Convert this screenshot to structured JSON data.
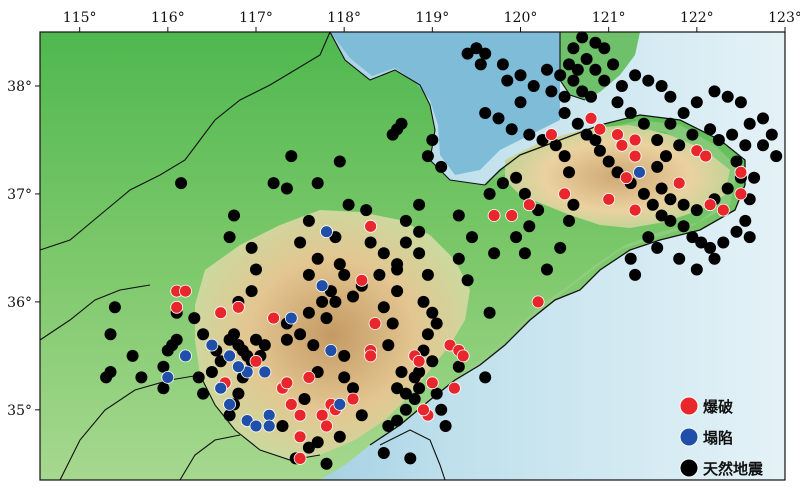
{
  "map": {
    "longitude_ticks": [
      "115°",
      "116°",
      "117°",
      "118°",
      "119°",
      "120°",
      "121°",
      "122°",
      "123°"
    ],
    "latitude_ticks": [
      "38°",
      "37°",
      "36°",
      "35°"
    ],
    "lon_range": [
      114.55,
      123.0
    ],
    "lat_range": [
      34.35,
      38.5
    ],
    "legend": [
      {
        "label": "爆破",
        "color": "#e8262b"
      },
      {
        "label": "塌陷",
        "color": "#1f4fa8"
      },
      {
        "label": "天然地震",
        "color": "#000000"
      }
    ],
    "colors": {
      "sea_deep": "#7fb8d6",
      "sea_shallow": "#d8ecf2",
      "lowland": "#5cbf5a",
      "plain": "#9fd68a",
      "hills": "#e9d3a3",
      "mountain": "#c7a06a",
      "boundary": "#111111"
    }
  },
  "events": {
    "blast": [
      [
        116.1,
        36.1
      ],
      [
        116.2,
        36.1
      ],
      [
        116.1,
        35.95
      ],
      [
        116.6,
        35.9
      ],
      [
        116.8,
        35.95
      ],
      [
        117.2,
        35.85
      ],
      [
        117.4,
        35.05
      ],
      [
        117.3,
        35.2
      ],
      [
        117.5,
        34.95
      ],
      [
        117.5,
        34.75
      ],
      [
        117.5,
        34.55
      ],
      [
        117.75,
        34.95
      ],
      [
        117.8,
        34.85
      ],
      [
        117.85,
        35.05
      ],
      [
        118.3,
        35.55
      ],
      [
        118.3,
        35.5
      ],
      [
        118.35,
        35.8
      ],
      [
        118.2,
        36.2
      ],
      [
        118.3,
        36.7
      ],
      [
        118.1,
        35.1
      ],
      [
        118.8,
        35.5
      ],
      [
        118.85,
        35.45
      ],
      [
        119.2,
        35.6
      ],
      [
        119.3,
        35.55
      ],
      [
        119.35,
        35.5
      ],
      [
        119.0,
        35.25
      ],
      [
        118.95,
        34.95
      ],
      [
        118.9,
        35.0
      ],
      [
        119.25,
        35.2
      ],
      [
        119.7,
        36.8
      ],
      [
        119.9,
        36.8
      ],
      [
        120.1,
        36.9
      ],
      [
        120.35,
        37.55
      ],
      [
        120.5,
        37.0
      ],
      [
        120.2,
        36.0
      ],
      [
        120.8,
        37.7
      ],
      [
        120.9,
        37.6
      ],
      [
        121.1,
        37.55
      ],
      [
        121.3,
        37.5
      ],
      [
        121.3,
        37.35
      ],
      [
        121.15,
        37.45
      ],
      [
        121.2,
        37.15
      ],
      [
        121.3,
        36.85
      ],
      [
        121.0,
        36.95
      ],
      [
        121.8,
        37.1
      ],
      [
        122.0,
        37.4
      ],
      [
        122.1,
        37.35
      ],
      [
        122.15,
        36.9
      ],
      [
        122.3,
        36.85
      ],
      [
        122.5,
        37.0
      ],
      [
        122.5,
        37.2
      ],
      [
        117.9,
        35.0
      ],
      [
        117.35,
        35.25
      ],
      [
        116.65,
        35.25
      ],
      [
        117.0,
        35.45
      ],
      [
        117.6,
        35.3
      ]
    ],
    "collapse": [
      [
        117.8,
        36.65
      ],
      [
        117.75,
        36.15
      ],
      [
        116.5,
        35.6
      ],
      [
        116.7,
        35.5
      ],
      [
        116.9,
        35.35
      ],
      [
        117.1,
        35.35
      ],
      [
        116.8,
        35.4
      ],
      [
        116.6,
        35.2
      ],
      [
        116.7,
        35.05
      ],
      [
        116.9,
        34.9
      ],
      [
        117.15,
        34.95
      ],
      [
        117.15,
        34.85
      ],
      [
        117.0,
        34.85
      ],
      [
        116.2,
        35.5
      ],
      [
        116.0,
        35.3
      ],
      [
        117.4,
        35.85
      ],
      [
        117.85,
        35.55
      ],
      [
        117.95,
        35.05
      ],
      [
        121.35,
        37.2
      ]
    ],
    "natural": [
      [
        115.4,
        35.95
      ],
      [
        115.35,
        35.7
      ],
      [
        115.35,
        35.35
      ],
      [
        115.3,
        35.3
      ],
      [
        115.6,
        35.5
      ],
      [
        115.7,
        35.3
      ],
      [
        115.95,
        35.4
      ],
      [
        115.95,
        35.2
      ],
      [
        116.0,
        35.55
      ],
      [
        116.05,
        35.6
      ],
      [
        116.1,
        35.65
      ],
      [
        116.1,
        35.9
      ],
      [
        116.3,
        35.85
      ],
      [
        116.4,
        35.7
      ],
      [
        116.35,
        35.3
      ],
      [
        116.4,
        35.15
      ],
      [
        116.5,
        35.35
      ],
      [
        116.55,
        35.55
      ],
      [
        116.6,
        35.45
      ],
      [
        116.7,
        35.65
      ],
      [
        116.75,
        35.7
      ],
      [
        116.8,
        35.6
      ],
      [
        116.85,
        35.55
      ],
      [
        116.85,
        35.3
      ],
      [
        116.8,
        35.15
      ],
      [
        116.75,
        35.05
      ],
      [
        116.7,
        34.95
      ],
      [
        116.9,
        35.5
      ],
      [
        116.95,
        35.45
      ],
      [
        117.0,
        35.65
      ],
      [
        117.05,
        35.5
      ],
      [
        117.1,
        35.6
      ],
      [
        116.95,
        36.1
      ],
      [
        116.8,
        36.0
      ],
      [
        117.0,
        36.3
      ],
      [
        116.95,
        36.5
      ],
      [
        116.7,
        36.6
      ],
      [
        116.75,
        36.8
      ],
      [
        116.15,
        37.1
      ],
      [
        117.35,
        37.05
      ],
      [
        117.4,
        37.35
      ],
      [
        117.2,
        37.1
      ],
      [
        117.6,
        36.75
      ],
      [
        117.5,
        36.55
      ],
      [
        117.6,
        36.25
      ],
      [
        117.7,
        36.4
      ],
      [
        117.85,
        36.1
      ],
      [
        117.9,
        36.0
      ],
      [
        117.75,
        36.0
      ],
      [
        117.8,
        35.85
      ],
      [
        117.65,
        35.6
      ],
      [
        117.7,
        35.35
      ],
      [
        117.55,
        35.1
      ],
      [
        117.3,
        34.85
      ],
      [
        117.35,
        35.65
      ],
      [
        117.35,
        35.8
      ],
      [
        117.5,
        35.7
      ],
      [
        117.6,
        35.9
      ],
      [
        118.0,
        35.5
      ],
      [
        118.0,
        35.3
      ],
      [
        118.1,
        35.2
      ],
      [
        118.2,
        34.95
      ],
      [
        117.95,
        34.75
      ],
      [
        117.7,
        34.7
      ],
      [
        117.6,
        34.65
      ],
      [
        117.45,
        34.55
      ],
      [
        117.8,
        34.5
      ],
      [
        117.9,
        36.6
      ],
      [
        117.95,
        36.35
      ],
      [
        118.0,
        36.25
      ],
      [
        118.1,
        36.05
      ],
      [
        118.2,
        36.15
      ],
      [
        118.4,
        36.25
      ],
      [
        118.45,
        35.95
      ],
      [
        118.5,
        35.6
      ],
      [
        118.55,
        35.8
      ],
      [
        118.6,
        36.1
      ],
      [
        118.6,
        36.35
      ],
      [
        118.45,
        36.45
      ],
      [
        118.3,
        36.55
      ],
      [
        118.7,
        36.55
      ],
      [
        118.7,
        36.75
      ],
      [
        118.85,
        36.65
      ],
      [
        118.85,
        36.45
      ],
      [
        118.95,
        36.25
      ],
      [
        118.9,
        36.0
      ],
      [
        119.0,
        35.9
      ],
      [
        118.95,
        35.7
      ],
      [
        118.9,
        35.55
      ],
      [
        118.85,
        35.35
      ],
      [
        118.85,
        35.2
      ],
      [
        118.8,
        35.1
      ],
      [
        118.7,
        35.0
      ],
      [
        118.6,
        34.9
      ],
      [
        118.5,
        34.85
      ],
      [
        118.45,
        34.6
      ],
      [
        118.75,
        34.55
      ],
      [
        118.7,
        35.15
      ],
      [
        118.6,
        35.2
      ],
      [
        118.65,
        35.35
      ],
      [
        118.8,
        35.3
      ],
      [
        119.05,
        35.8
      ],
      [
        119.0,
        35.45
      ],
      [
        119.05,
        35.15
      ],
      [
        119.1,
        35.0
      ],
      [
        119.15,
        34.85
      ],
      [
        119.3,
        35.4
      ],
      [
        119.6,
        35.3
      ],
      [
        119.65,
        35.9
      ],
      [
        119.4,
        36.2
      ],
      [
        119.3,
        36.4
      ],
      [
        119.45,
        36.6
      ],
      [
        119.3,
        36.8
      ],
      [
        119.65,
        37.0
      ],
      [
        119.8,
        37.1
      ],
      [
        119.95,
        37.15
      ],
      [
        120.05,
        37.0
      ],
      [
        120.2,
        36.85
      ],
      [
        120.1,
        36.7
      ],
      [
        119.95,
        36.6
      ],
      [
        119.7,
        36.45
      ],
      [
        120.05,
        36.45
      ],
      [
        120.3,
        36.3
      ],
      [
        120.45,
        36.5
      ],
      [
        120.55,
        36.75
      ],
      [
        120.6,
        36.9
      ],
      [
        120.55,
        37.2
      ],
      [
        120.5,
        37.35
      ],
      [
        120.4,
        37.45
      ],
      [
        120.25,
        37.5
      ],
      [
        120.1,
        37.55
      ],
      [
        119.9,
        37.6
      ],
      [
        119.75,
        37.7
      ],
      [
        119.6,
        37.75
      ],
      [
        120.0,
        37.85
      ],
      [
        120.35,
        37.95
      ],
      [
        120.5,
        37.75
      ],
      [
        120.65,
        37.65
      ],
      [
        120.75,
        37.55
      ],
      [
        120.85,
        37.5
      ],
      [
        120.9,
        37.4
      ],
      [
        121.0,
        37.3
      ],
      [
        121.1,
        37.2
      ],
      [
        121.25,
        37.1
      ],
      [
        121.4,
        37.0
      ],
      [
        121.5,
        36.9
      ],
      [
        121.6,
        36.8
      ],
      [
        121.7,
        36.75
      ],
      [
        121.85,
        36.7
      ],
      [
        121.95,
        36.6
      ],
      [
        122.05,
        36.55
      ],
      [
        122.15,
        36.5
      ],
      [
        122.3,
        36.55
      ],
      [
        122.45,
        36.65
      ],
      [
        122.55,
        36.75
      ],
      [
        122.6,
        36.95
      ],
      [
        122.5,
        37.15
      ],
      [
        122.45,
        37.3
      ],
      [
        122.55,
        37.45
      ],
      [
        122.6,
        37.65
      ],
      [
        122.75,
        37.7
      ],
      [
        122.85,
        37.55
      ],
      [
        122.9,
        37.35
      ],
      [
        122.75,
        37.45
      ],
      [
        122.65,
        37.15
      ],
      [
        122.35,
        37.05
      ],
      [
        122.2,
        36.95
      ],
      [
        122.0,
        36.85
      ],
      [
        121.85,
        36.9
      ],
      [
        121.7,
        36.95
      ],
      [
        121.6,
        37.05
      ],
      [
        121.55,
        37.25
      ],
      [
        121.65,
        37.35
      ],
      [
        121.55,
        37.5
      ],
      [
        121.7,
        37.65
      ],
      [
        121.85,
        37.75
      ],
      [
        122.0,
        37.85
      ],
      [
        122.2,
        37.95
      ],
      [
        122.35,
        37.9
      ],
      [
        122.5,
        37.85
      ],
      [
        122.4,
        37.55
      ],
      [
        122.25,
        37.5
      ],
      [
        122.15,
        37.6
      ],
      [
        121.95,
        37.55
      ],
      [
        121.8,
        37.45
      ],
      [
        121.4,
        37.65
      ],
      [
        121.25,
        37.75
      ],
      [
        121.1,
        37.85
      ],
      [
        121.15,
        38.0
      ],
      [
        121.3,
        38.1
      ],
      [
        121.45,
        38.05
      ],
      [
        121.6,
        38.0
      ],
      [
        121.7,
        37.9
      ],
      [
        121.05,
        38.2
      ],
      [
        120.95,
        38.35
      ],
      [
        120.85,
        38.4
      ],
      [
        120.7,
        38.45
      ],
      [
        120.6,
        38.35
      ],
      [
        120.55,
        38.2
      ],
      [
        120.45,
        38.1
      ],
      [
        120.6,
        38.05
      ],
      [
        120.7,
        37.95
      ],
      [
        120.8,
        37.9
      ],
      [
        120.95,
        38.05
      ],
      [
        120.85,
        38.15
      ],
      [
        120.75,
        38.25
      ],
      [
        120.65,
        38.15
      ],
      [
        120.5,
        37.9
      ],
      [
        120.3,
        38.15
      ],
      [
        120.15,
        38.0
      ],
      [
        120.0,
        38.1
      ],
      [
        119.8,
        38.2
      ],
      [
        119.55,
        38.2
      ],
      [
        119.4,
        38.3
      ],
      [
        119.5,
        38.35
      ],
      [
        119.6,
        38.3
      ],
      [
        119.85,
        38.05
      ],
      [
        118.6,
        37.6
      ],
      [
        118.55,
        37.55
      ],
      [
        118.65,
        37.65
      ],
      [
        118.95,
        37.35
      ],
      [
        119.1,
        37.25
      ],
      [
        119.0,
        37.5
      ],
      [
        118.85,
        36.9
      ],
      [
        118.6,
        36.3
      ],
      [
        118.25,
        36.85
      ],
      [
        118.05,
        36.9
      ],
      [
        117.7,
        37.1
      ],
      [
        117.95,
        37.3
      ],
      [
        121.45,
        36.6
      ],
      [
        121.25,
        36.4
      ],
      [
        121.3,
        36.25
      ],
      [
        121.55,
        36.5
      ],
      [
        121.8,
        36.4
      ],
      [
        122.0,
        36.3
      ],
      [
        122.2,
        36.4
      ],
      [
        122.6,
        36.6
      ]
    ]
  }
}
